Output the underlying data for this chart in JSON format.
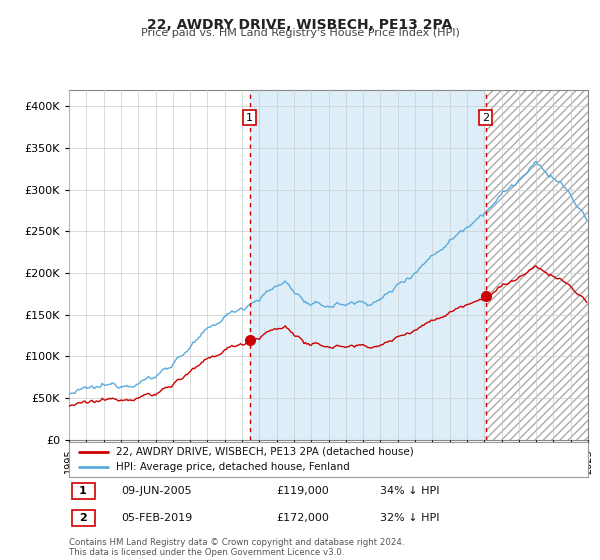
{
  "title": "22, AWDRY DRIVE, WISBECH, PE13 2PA",
  "subtitle": "Price paid vs. HM Land Registry's House Price Index (HPI)",
  "legend_line1": "22, AWDRY DRIVE, WISBECH, PE13 2PA (detached house)",
  "legend_line2": "HPI: Average price, detached house, Fenland",
  "annotation1_label": "1",
  "annotation1_date": "09-JUN-2005",
  "annotation1_price": "£119,000",
  "annotation1_hpi": "34% ↓ HPI",
  "annotation2_label": "2",
  "annotation2_date": "05-FEB-2019",
  "annotation2_price": "£172,000",
  "annotation2_hpi": "32% ↓ HPI",
  "footer": "Contains HM Land Registry data © Crown copyright and database right 2024.\nThis data is licensed under the Open Government Licence v3.0.",
  "hpi_color": "#5aabdc",
  "price_color": "#cc0000",
  "vline_color": "#cc0000",
  "shade_color": "#ddeef8",
  "background_color": "#ffffff",
  "sale1_x": 2005.44,
  "sale1_y": 119000,
  "sale2_x": 2019.09,
  "sale2_y": 172000,
  "ylim": [
    0,
    420000
  ],
  "xlim": [
    1995.0,
    2025.0
  ]
}
